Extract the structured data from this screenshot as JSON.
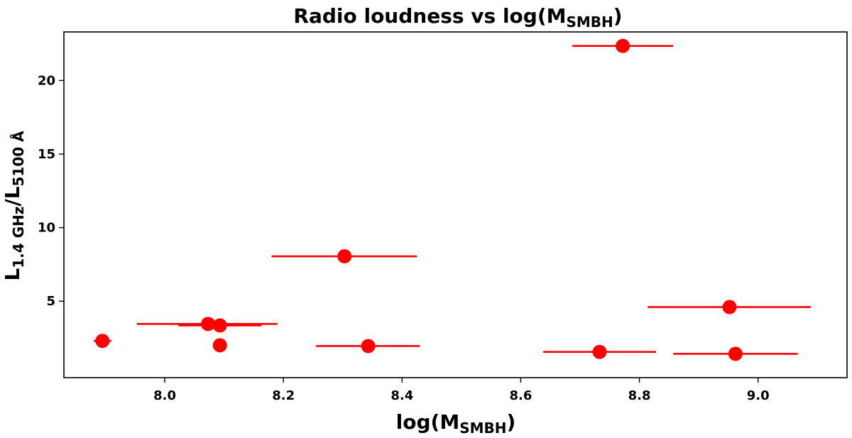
{
  "chart_data": {
    "type": "scatter",
    "title": "Radio loudness vs log(M",
    "title_sub": "SMBH",
    "title_end": ")",
    "xlabel": "log(M",
    "xlabel_sub": "SMBH",
    "xlabel_end": ")",
    "ylabel_main": "L",
    "ylabel_sub1": "1.4 GHz",
    "ylabel_mid": "/L",
    "ylabel_sub2": "5100 Å",
    "xlim": [
      7.83,
      9.15
    ],
    "ylim": [
      -0.2,
      23.3
    ],
    "xticks": [
      8.0,
      8.2,
      8.4,
      8.6,
      8.8,
      9.0
    ],
    "xtick_labels": [
      "8.0",
      "8.2",
      "8.4",
      "8.6",
      "8.8",
      "9.0"
    ],
    "yticks": [
      5,
      10,
      15,
      20
    ],
    "ytick_labels": [
      "5",
      "10",
      "15",
      "20"
    ],
    "color": "#ff0000",
    "grid": false,
    "points": [
      {
        "x": 7.895,
        "y": 2.3,
        "xerr_lo": 0.015,
        "xerr_hi": 0.015
      },
      {
        "x": 8.073,
        "y": 3.45,
        "xerr_lo": 0.12,
        "xerr_hi": 0.117
      },
      {
        "x": 8.093,
        "y": 3.35,
        "xerr_lo": 0.07,
        "xerr_hi": 0.07
      },
      {
        "x": 8.093,
        "y": 2.0,
        "xerr_lo": 0,
        "xerr_hi": 0
      },
      {
        "x": 8.303,
        "y": 8.05,
        "xerr_lo": 0.123,
        "xerr_hi": 0.122
      },
      {
        "x": 8.343,
        "y": 1.95,
        "xerr_lo": 0.088,
        "xerr_hi": 0.087
      },
      {
        "x": 8.733,
        "y": 1.55,
        "xerr_lo": 0.095,
        "xerr_hi": 0.095
      },
      {
        "x": 8.772,
        "y": 22.35,
        "xerr_lo": 0.085,
        "xerr_hi": 0.085
      },
      {
        "x": 8.952,
        "y": 4.6,
        "xerr_lo": 0.138,
        "xerr_hi": 0.137
      },
      {
        "x": 8.962,
        "y": 1.42,
        "xerr_lo": 0.105,
        "xerr_hi": 0.105
      }
    ]
  }
}
